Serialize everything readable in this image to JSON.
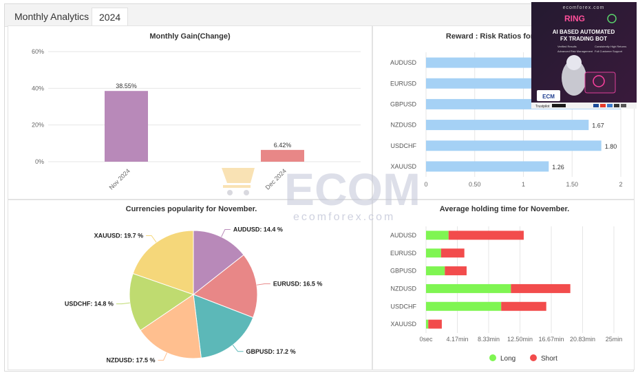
{
  "tabs": {
    "title": "Monthly Analytics",
    "year": "2024"
  },
  "colors": {
    "purple": "#b889b9",
    "salmon": "#e88787",
    "teal": "#5cb8b8",
    "peach": "#ffbf8f",
    "lime": "#bfdb70",
    "yellow": "#f5d77a",
    "blue": "#a5d1f5",
    "long": "#7ff552",
    "short": "#f24c4c"
  },
  "chart_data": [
    {
      "type": "bar",
      "title": "Monthly Gain(Change)",
      "categories": [
        "Nov 2024",
        "Dec 2024"
      ],
      "values": [
        38.55,
        6.42
      ],
      "value_labels": [
        "38.55%",
        "6.42%"
      ],
      "bar_colors": [
        "#b889b9",
        "#e88787"
      ],
      "ylim": [
        0,
        60
      ],
      "yticks": [
        0,
        20,
        40,
        60
      ],
      "ytick_labels": [
        "0%",
        "20%",
        "40%",
        "60%"
      ],
      "grid": true
    },
    {
      "type": "bar",
      "orientation": "horizontal",
      "title": "Reward : Risk Ratios for N",
      "categories": [
        "AUDUSD",
        "EURUSD",
        "GBPUSD",
        "NZDUSD",
        "USDCHF",
        "XAUUSD"
      ],
      "values": [
        null,
        null,
        null,
        1.67,
        1.8,
        1.26
      ],
      "value_labels": [
        "",
        "",
        "",
        "1.67",
        "1.80",
        "1.26"
      ],
      "xlim": [
        0,
        2
      ],
      "xticks": [
        0,
        0.5,
        1,
        1.5,
        2
      ],
      "xtick_labels": [
        "0",
        "0.50",
        "1",
        "1.50",
        "2"
      ],
      "grid": true
    },
    {
      "type": "pie",
      "title": "Currencies popularity for November.",
      "labels": [
        "AUDUSD",
        "EURUSD",
        "GBPUSD",
        "NZDUSD",
        "USDCHF",
        "XAUUSD"
      ],
      "values": [
        14.4,
        16.5,
        17.2,
        17.5,
        14.8,
        19.7
      ],
      "value_labels": [
        "AUDUSD: 14.4 %",
        "EURUSD: 16.5 %",
        "GBPUSD: 17.2 %",
        "NZDUSD: 17.5 %",
        "USDCHF: 14.8 %",
        "XAUUSD: 19.7 %"
      ],
      "colors": [
        "#b889b9",
        "#e88787",
        "#5cb8b8",
        "#ffbf8f",
        "#bfdb70",
        "#f5d77a"
      ]
    },
    {
      "type": "bar",
      "orientation": "horizontal",
      "stacked": true,
      "title": "Average holding time for November.",
      "categories": [
        "AUDUSD",
        "EURUSD",
        "GBPUSD",
        "NZDUSD",
        "USDCHF",
        "XAUUSD"
      ],
      "series": [
        {
          "name": "Long",
          "values": [
            3.0,
            2.0,
            2.5,
            11.3,
            10.0,
            0.3
          ]
        },
        {
          "name": "Short",
          "values": [
            10.0,
            3.1,
            2.9,
            7.9,
            6.0,
            1.8
          ]
        }
      ],
      "unit": "min",
      "xlim": [
        0,
        25
      ],
      "xticks": [
        0,
        4.17,
        8.33,
        12.5,
        16.67,
        20.83,
        25
      ],
      "xtick_labels": [
        "0sec",
        "4.17min",
        "8.33min",
        "12.50min",
        "16.67min",
        "20.83min",
        "25min"
      ],
      "legend": "bottom",
      "grid": true
    }
  ],
  "ad": {
    "site": "ecomforex.com",
    "brand": "RING",
    "headline1": "AI BASED AUTOMATED",
    "headline2": "FX TRADING BOT",
    "features": [
      "Verified Results",
      "Consistently High Returns",
      "Advanced Risk Management",
      "Full Customer Support"
    ],
    "logo": "ECM",
    "trustpilot": "Trustpilot"
  },
  "watermark": {
    "brand": "ECOM",
    "url": "ecomforex.com"
  }
}
